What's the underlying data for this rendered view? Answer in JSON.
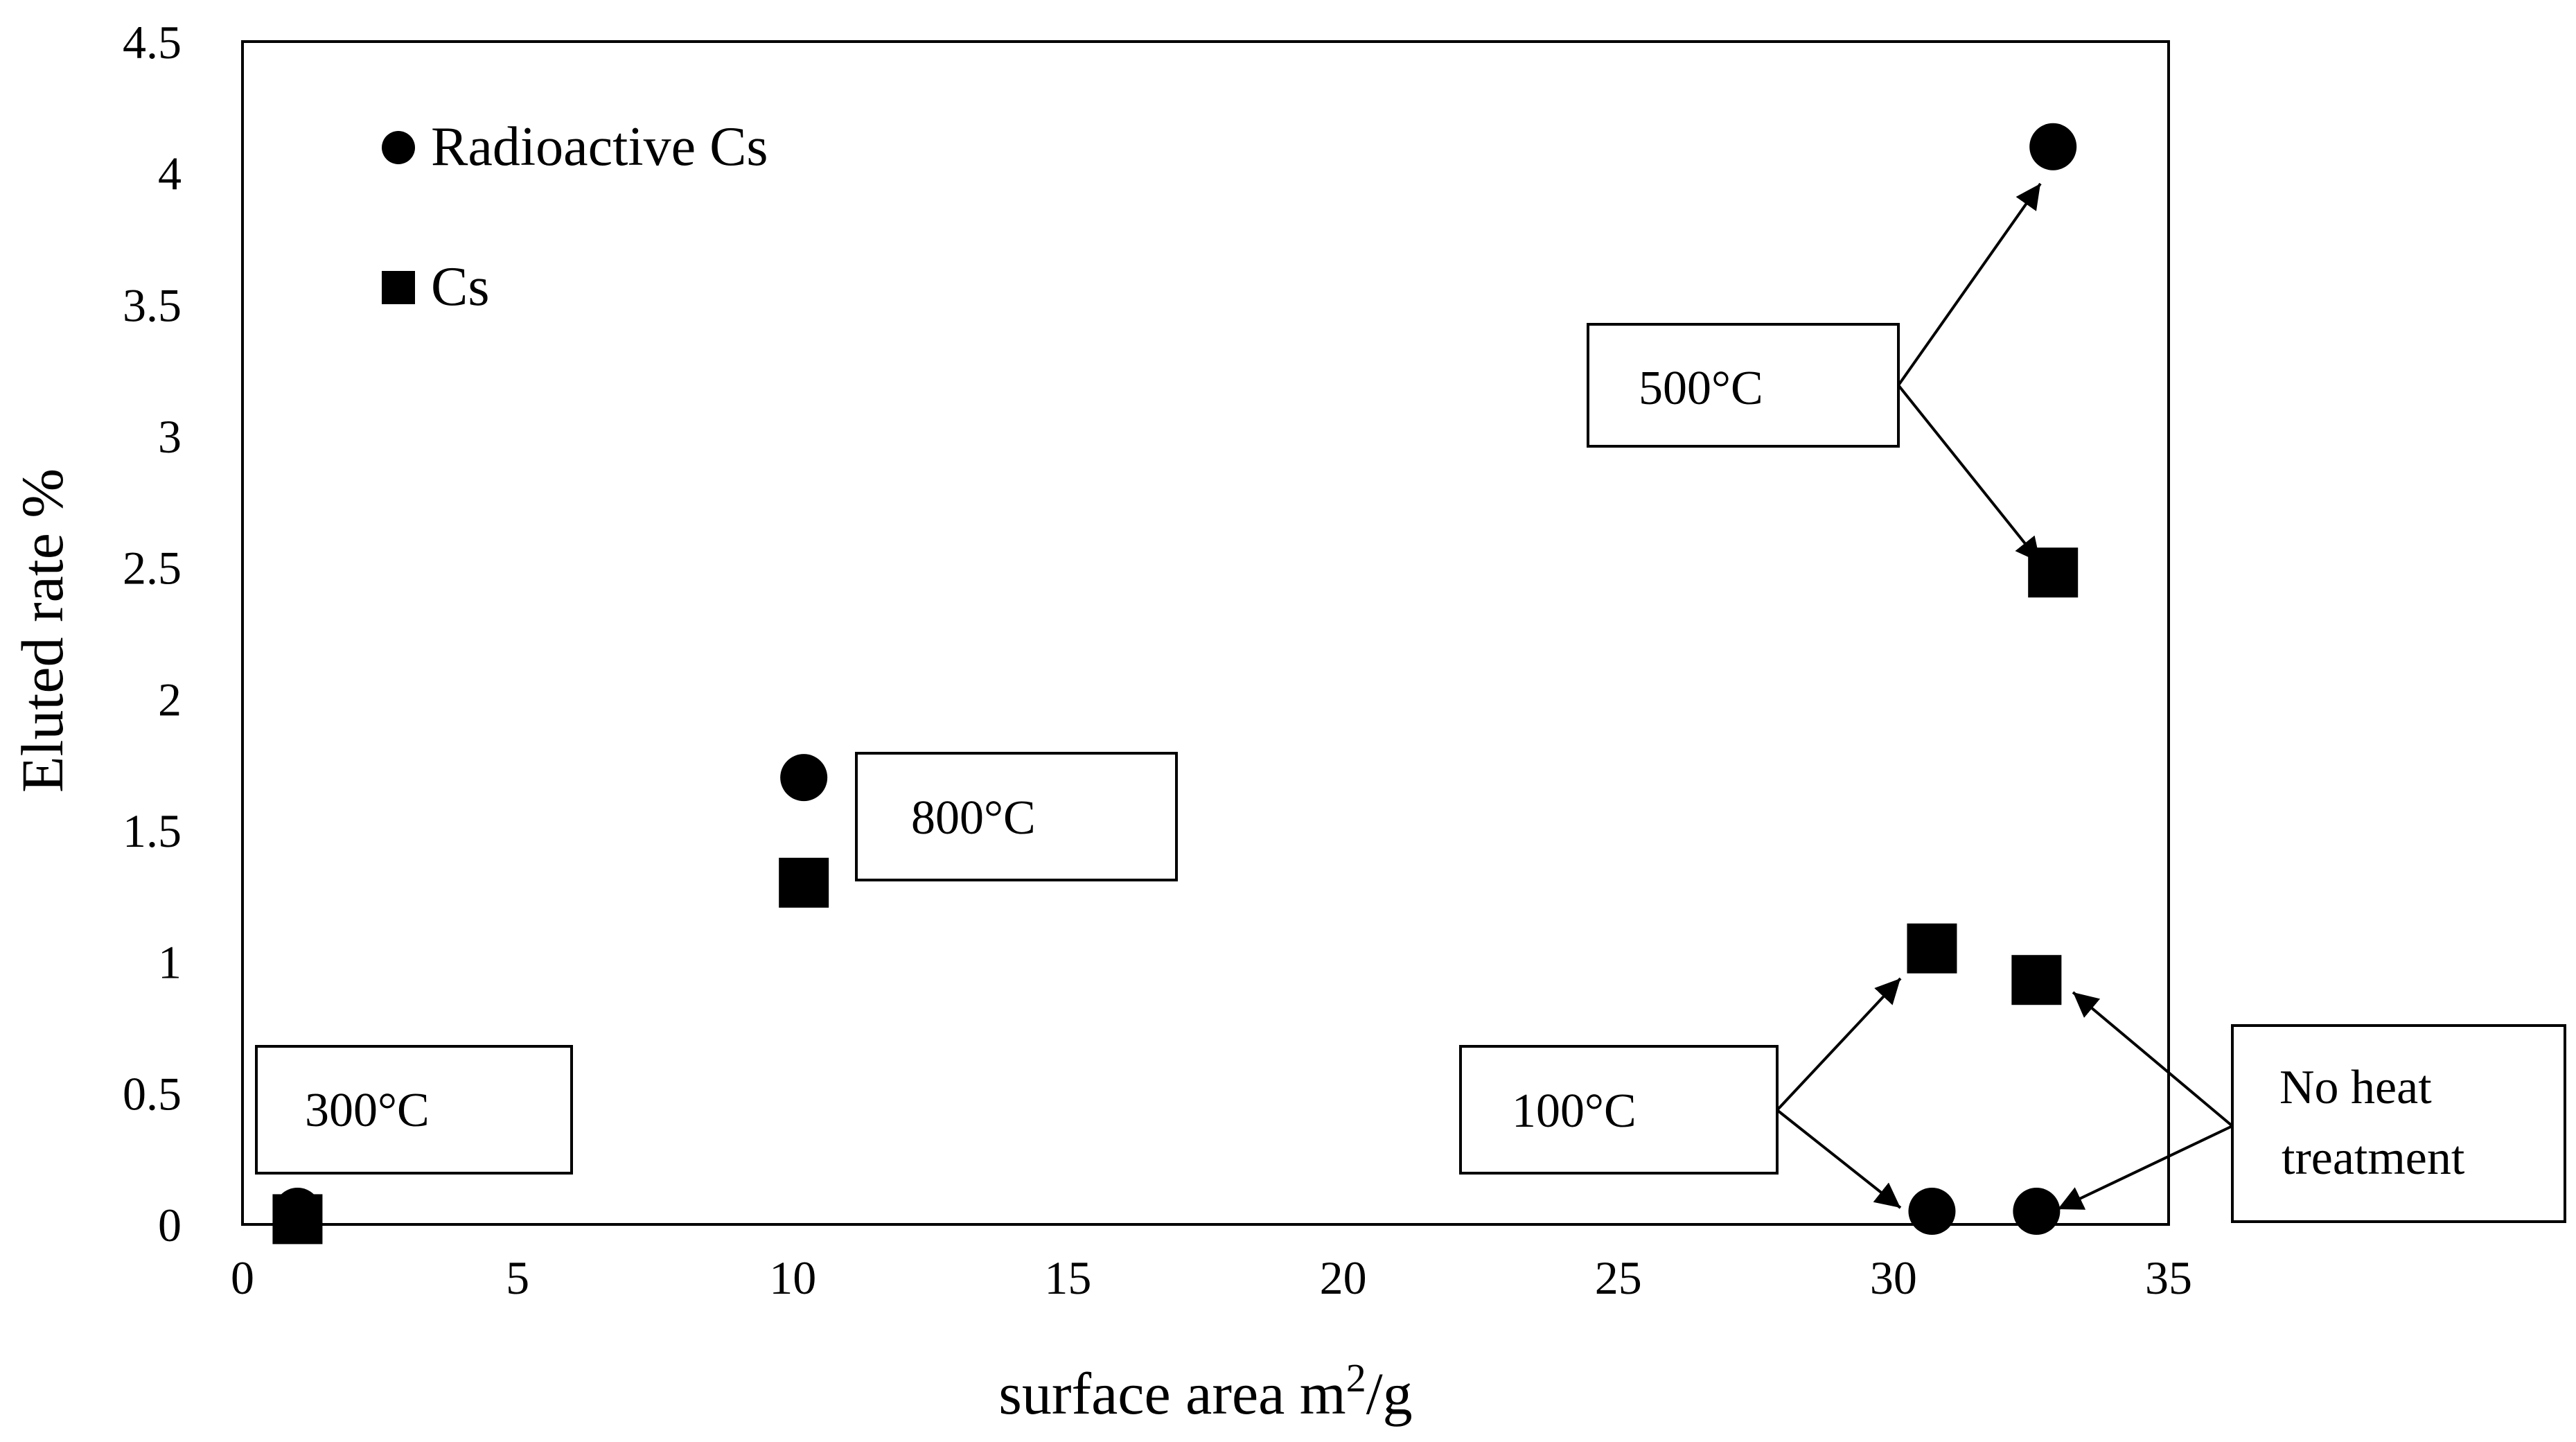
{
  "chart_data": {
    "type": "scatter",
    "title": "",
    "xlabel": "surface area m",
    "xlabel_sup": "2",
    "xlabel_suffix": "/g",
    "ylabel": "Eluted rate %",
    "xlim": [
      0,
      35
    ],
    "ylim": [
      0,
      4.5
    ],
    "xticks": [
      "0",
      "5",
      "10",
      "15",
      "20",
      "25",
      "30",
      "35"
    ],
    "yticks": [
      "0",
      "0.5",
      "1",
      "1.5",
      "2",
      "2.5",
      "3",
      "3.5",
      "4",
      "4.5"
    ],
    "grid": false,
    "legend_position": "top-left",
    "series": [
      {
        "name": "Radioactive Cs",
        "marker": "circle",
        "color": "#000000",
        "points": [
          {
            "x": 1.0,
            "y": 0.05
          },
          {
            "x": 10.2,
            "y": 1.7
          },
          {
            "x": 32.9,
            "y": 4.1
          },
          {
            "x": 30.7,
            "y": 0.05
          },
          {
            "x": 32.6,
            "y": 0.05
          }
        ]
      },
      {
        "name": "Cs",
        "marker": "square",
        "color": "#000000",
        "points": [
          {
            "x": 1.0,
            "y": 0.02
          },
          {
            "x": 10.2,
            "y": 1.3
          },
          {
            "x": 32.9,
            "y": 2.48
          },
          {
            "x": 30.7,
            "y": 1.05
          },
          {
            "x": 32.6,
            "y": 0.93
          }
        ]
      }
    ],
    "annotations": [
      {
        "id": "300",
        "label": [
          "300°C"
        ],
        "targets": []
      },
      {
        "id": "800",
        "label": [
          "800°C"
        ],
        "targets": []
      },
      {
        "id": "500",
        "label": [
          "500°C"
        ],
        "targets": [
          {
            "x": 32.9,
            "y": 4.1
          },
          {
            "x": 32.9,
            "y": 2.48
          }
        ]
      },
      {
        "id": "100",
        "label": [
          "100°C"
        ],
        "targets": [
          {
            "x": 30.7,
            "y": 1.05
          },
          {
            "x": 30.7,
            "y": 0.05
          }
        ]
      },
      {
        "id": "noheat",
        "label": [
          "No heat",
          "treatment"
        ],
        "targets": [
          {
            "x": 32.6,
            "y": 0.93
          },
          {
            "x": 32.6,
            "y": 0.05
          }
        ]
      }
    ]
  }
}
